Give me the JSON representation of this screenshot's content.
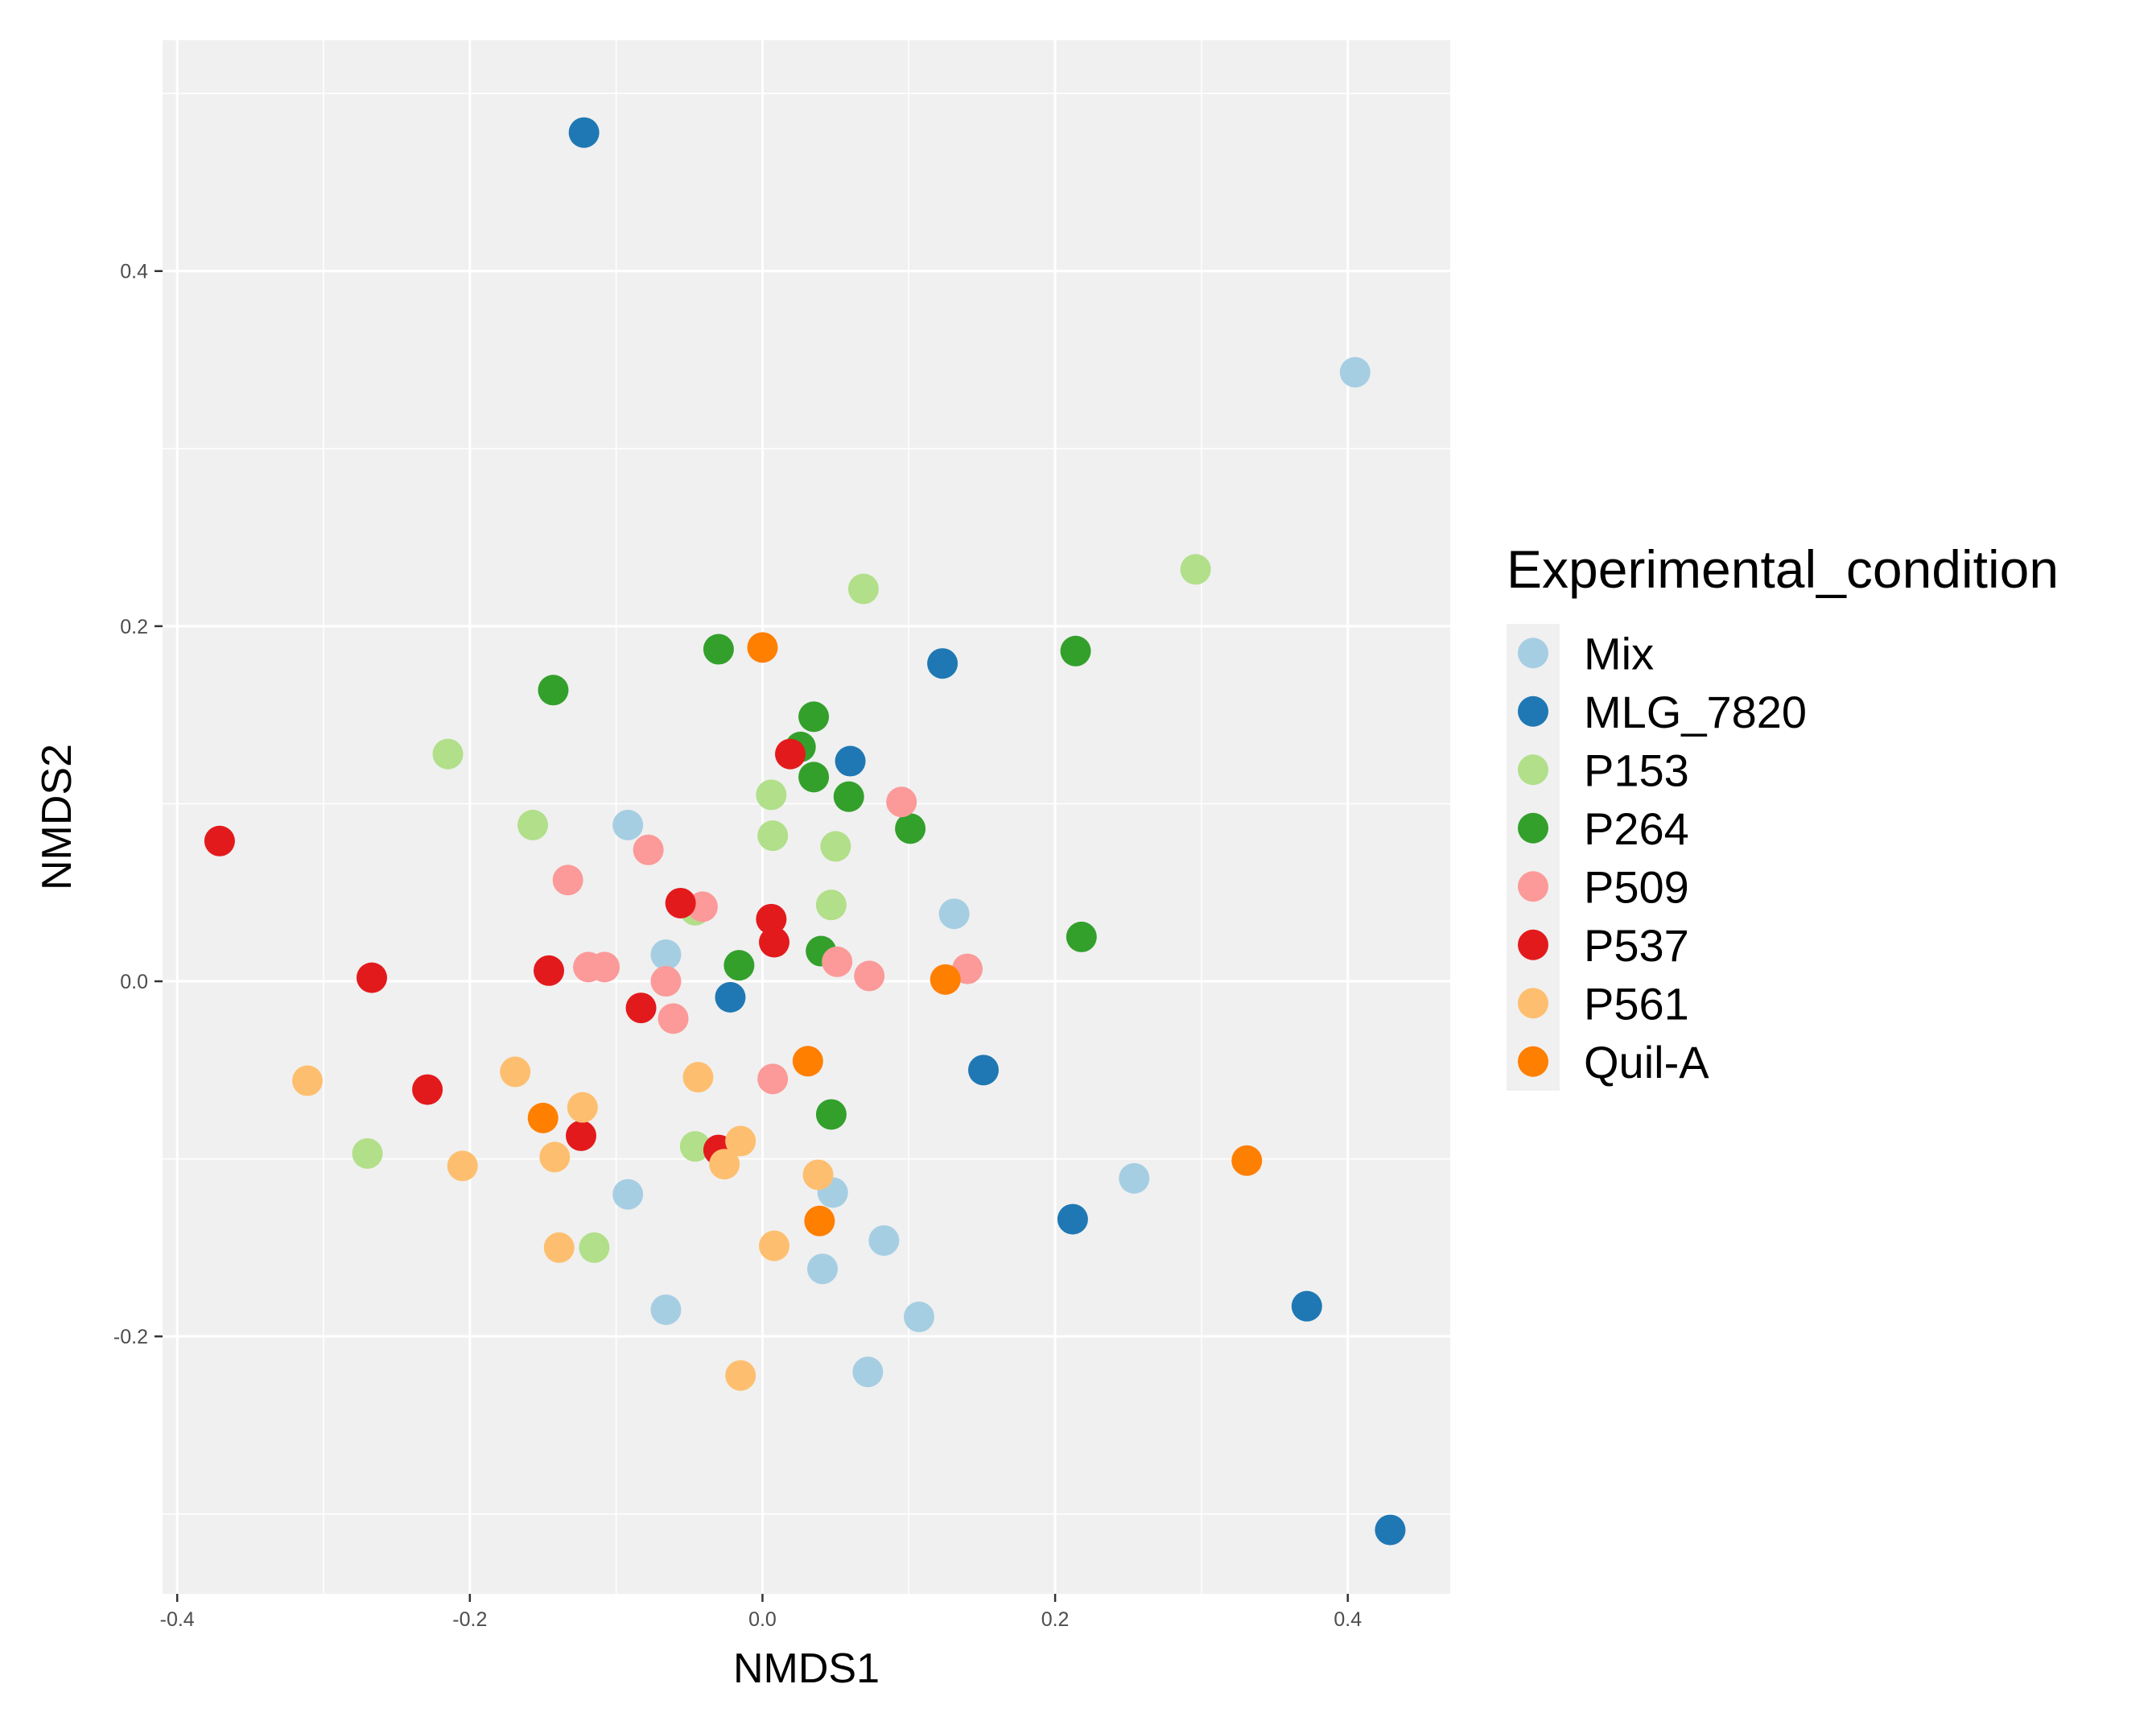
{
  "chart_data": {
    "type": "scatter",
    "title": "",
    "xlabel": "NMDS1",
    "ylabel": "NMDS2",
    "xlim": [
      -0.41,
      0.47
    ],
    "ylim": [
      -0.345,
      0.53
    ],
    "x_ticks": [
      {
        "value": -0.4,
        "label": "-0.4"
      },
      {
        "value": -0.2,
        "label": "-0.2"
      },
      {
        "value": 0.0,
        "label": "0.0"
      },
      {
        "value": 0.2,
        "label": "0.2"
      },
      {
        "value": 0.4,
        "label": "0.4"
      }
    ],
    "y_ticks": [
      {
        "value": -0.2,
        "label": "-0.2"
      },
      {
        "value": 0.0,
        "label": "0.0"
      },
      {
        "value": 0.2,
        "label": "0.2"
      },
      {
        "value": 0.4,
        "label": "0.4"
      }
    ],
    "grid": true,
    "panel_background": "#f0f0f0",
    "gridline_color": "#ffffff",
    "legend": {
      "title": "Experimental_condition",
      "position": "right"
    },
    "series": [
      {
        "name": "Mix",
        "color": "#a6cee3",
        "points": [
          [
            0.405,
            0.343
          ],
          [
            -0.092,
            0.088
          ],
          [
            0.131,
            0.038
          ],
          [
            -0.066,
            0.015
          ],
          [
            -0.092,
            -0.12
          ],
          [
            0.048,
            -0.119
          ],
          [
            0.083,
            -0.146
          ],
          [
            0.254,
            -0.111
          ],
          [
            0.041,
            -0.162
          ],
          [
            -0.066,
            -0.185
          ],
          [
            0.107,
            -0.189
          ],
          [
            0.072,
            -0.22
          ]
        ]
      },
      {
        "name": "MLG_7820",
        "color": "#1f78b4",
        "points": [
          [
            -0.122,
            0.478
          ],
          [
            0.123,
            0.179
          ],
          [
            0.06,
            0.124
          ],
          [
            -0.022,
            -0.009
          ],
          [
            0.151,
            -0.05
          ],
          [
            0.212,
            -0.134
          ],
          [
            0.372,
            -0.183
          ],
          [
            0.429,
            -0.309
          ]
        ]
      },
      {
        "name": "P153",
        "color": "#b2df8a",
        "points": [
          [
            0.296,
            0.232
          ],
          [
            0.069,
            0.221
          ],
          [
            -0.215,
            0.128
          ],
          [
            -0.157,
            0.088
          ],
          [
            0.006,
            0.105
          ],
          [
            0.007,
            0.082
          ],
          [
            0.05,
            0.076
          ],
          [
            0.047,
            0.043
          ],
          [
            -0.046,
            0.04
          ],
          [
            -0.046,
            -0.093
          ],
          [
            -0.27,
            -0.097
          ],
          [
            -0.115,
            -0.15
          ]
        ]
      },
      {
        "name": "P264",
        "color": "#33a02c",
        "points": [
          [
            -0.03,
            0.187
          ],
          [
            0.214,
            0.186
          ],
          [
            -0.143,
            0.164
          ],
          [
            0.035,
            0.149
          ],
          [
            0.026,
            0.132
          ],
          [
            0.035,
            0.115
          ],
          [
            0.059,
            0.104
          ],
          [
            0.101,
            0.086
          ],
          [
            0.218,
            0.025
          ],
          [
            0.04,
            0.017
          ],
          [
            -0.016,
            0.009
          ],
          [
            0.047,
            -0.075
          ]
        ]
      },
      {
        "name": "P509",
        "color": "#fb9a99",
        "points": [
          [
            0.095,
            0.101
          ],
          [
            -0.078,
            0.074
          ],
          [
            -0.133,
            0.057
          ],
          [
            -0.041,
            0.042
          ],
          [
            -0.119,
            0.008
          ],
          [
            -0.108,
            0.008
          ],
          [
            0.051,
            0.011
          ],
          [
            0.073,
            0.003
          ],
          [
            0.14,
            0.007
          ],
          [
            -0.066,
            0.0
          ],
          [
            -0.061,
            -0.021
          ],
          [
            0.007,
            -0.055
          ]
        ]
      },
      {
        "name": "P537",
        "color": "#e31a1c",
        "points": [
          [
            -0.371,
            0.079
          ],
          [
            0.019,
            0.128
          ],
          [
            -0.056,
            0.044
          ],
          [
            0.006,
            0.035
          ],
          [
            0.008,
            0.022
          ],
          [
            -0.146,
            0.006
          ],
          [
            -0.267,
            0.002
          ],
          [
            -0.083,
            -0.015
          ],
          [
            -0.229,
            -0.061
          ],
          [
            -0.124,
            -0.087
          ],
          [
            -0.03,
            -0.095
          ]
        ]
      },
      {
        "name": "P561",
        "color": "#fdbf6f",
        "points": [
          [
            -0.311,
            -0.056
          ],
          [
            -0.169,
            -0.051
          ],
          [
            -0.044,
            -0.054
          ],
          [
            -0.123,
            -0.071
          ],
          [
            -0.142,
            -0.099
          ],
          [
            -0.015,
            -0.09
          ],
          [
            -0.205,
            -0.104
          ],
          [
            -0.026,
            -0.103
          ],
          [
            0.038,
            -0.109
          ],
          [
            -0.139,
            -0.15
          ],
          [
            0.008,
            -0.149
          ],
          [
            -0.015,
            -0.222
          ]
        ]
      },
      {
        "name": "Quil-A",
        "color": "#ff7f00",
        "points": [
          [
            0.0,
            0.188
          ],
          [
            0.125,
            0.001
          ],
          [
            0.031,
            -0.045
          ],
          [
            -0.15,
            -0.077
          ],
          [
            0.331,
            -0.101
          ],
          [
            0.039,
            -0.135
          ]
        ]
      }
    ]
  }
}
